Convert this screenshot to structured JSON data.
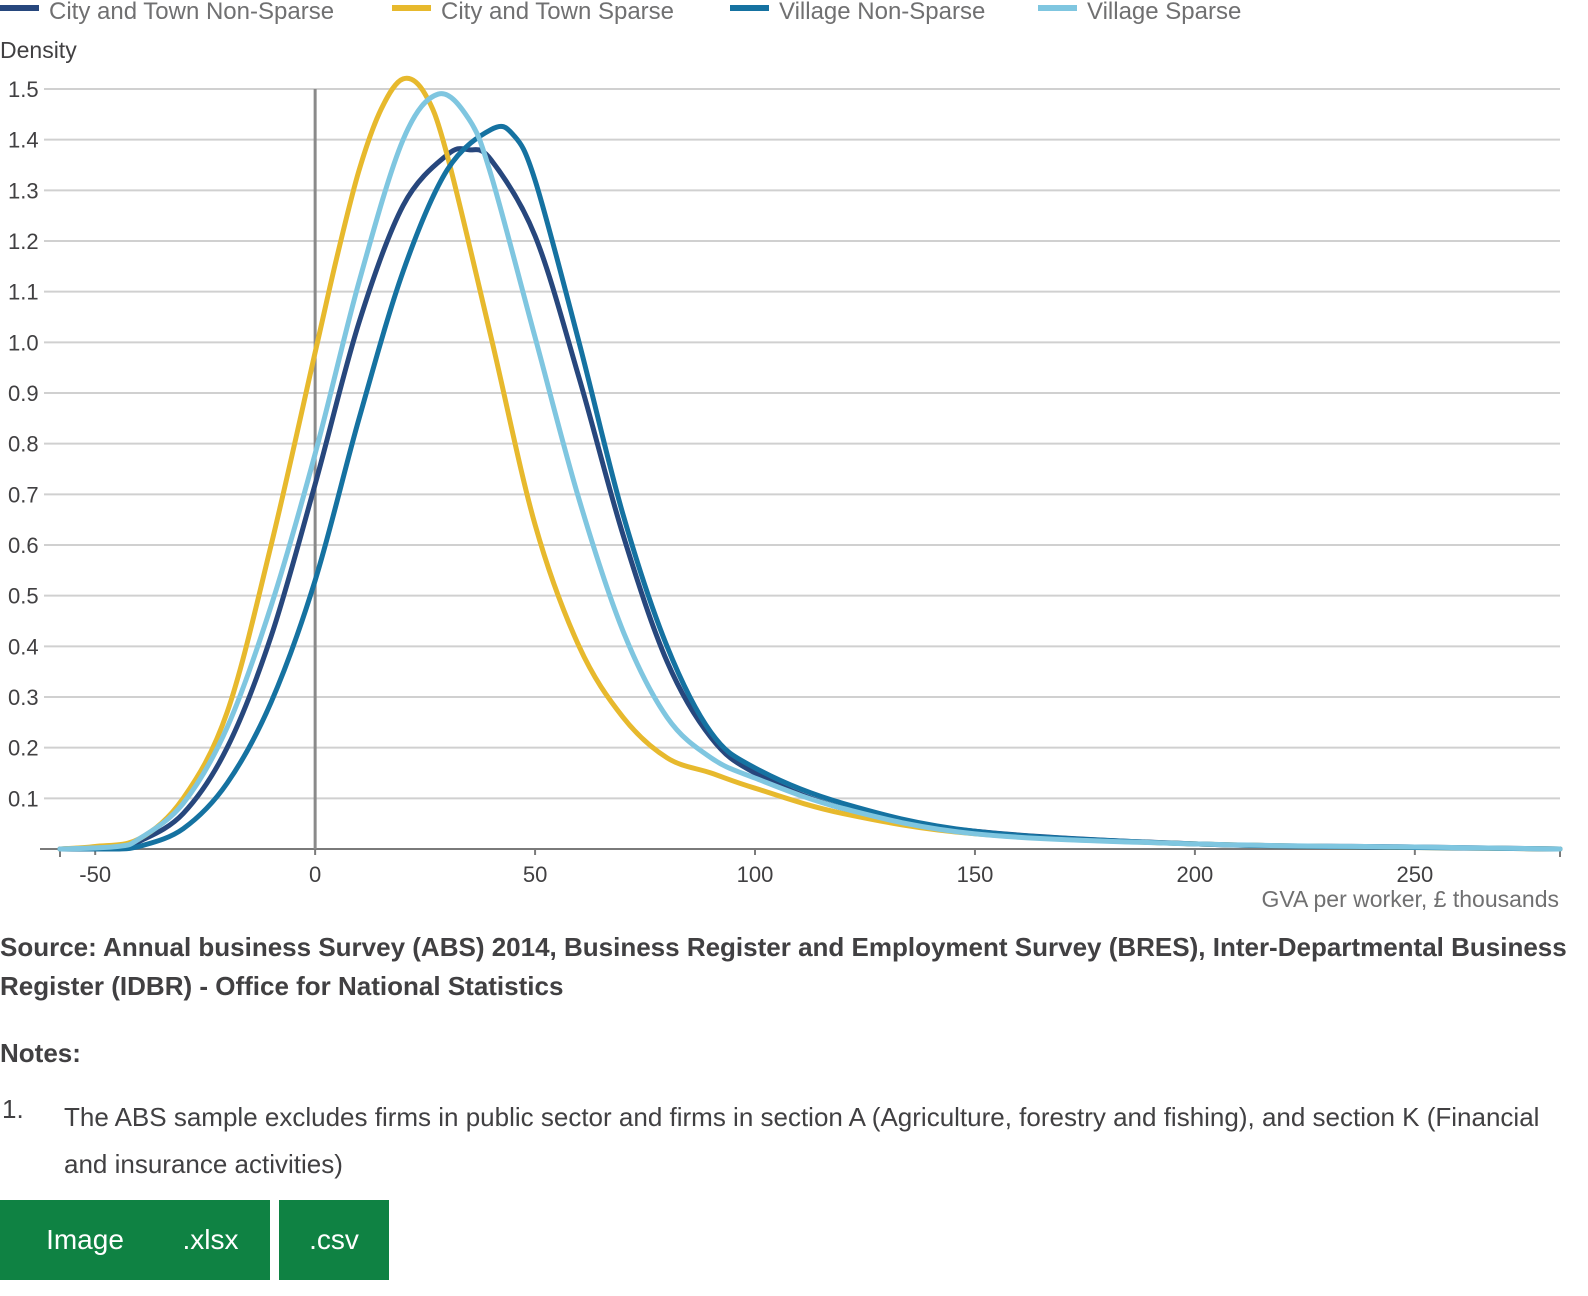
{
  "chart_data": {
    "type": "line",
    "ylabel": "Density",
    "xlabel": "GVA per worker, £ thousands",
    "xlim": [
      -58,
      283
    ],
    "ylim": [
      0,
      1.5
    ],
    "x_ticks": [
      -50,
      0,
      50,
      100,
      150,
      200,
      250
    ],
    "x_tick_labels": [
      "-50",
      "0",
      "50",
      "100",
      "150",
      "200",
      "250"
    ],
    "y_ticks": [
      0.1,
      0.2,
      0.3,
      0.4,
      0.5,
      0.6,
      0.7,
      0.8,
      0.9,
      1.0,
      1.1,
      1.2,
      1.3,
      1.4,
      1.5
    ],
    "y_tick_labels": [
      "0.1",
      "0.2",
      "0.3",
      "0.4",
      "0.5",
      "0.6",
      "0.7",
      "0.8",
      "0.9",
      "1.0",
      "1.1",
      "1.2",
      "1.3",
      "1.4",
      "1.5"
    ],
    "grid": true,
    "legend_position": "top",
    "reference_line_x": 0,
    "series": [
      {
        "name": "City and Town Non-Sparse",
        "color": "#27477d",
        "x": [
          -58,
          -45,
          -40,
          -30,
          -20,
          -10,
          0,
          10,
          20,
          30,
          35,
          40,
          50,
          60,
          70,
          80,
          90,
          100,
          120,
          150,
          200,
          250,
          283
        ],
        "y": [
          0,
          0.005,
          0.015,
          0.07,
          0.2,
          0.42,
          0.72,
          1.04,
          1.27,
          1.37,
          1.38,
          1.36,
          1.21,
          0.93,
          0.62,
          0.37,
          0.22,
          0.15,
          0.08,
          0.035,
          0.01,
          0.004,
          0
        ]
      },
      {
        "name": "City and Town Sparse",
        "color": "#e7b92d",
        "x": [
          -58,
          -50,
          -40,
          -30,
          -20,
          -10,
          0,
          5,
          10,
          15,
          20,
          25,
          30,
          40,
          50,
          60,
          70,
          80,
          90,
          100,
          120,
          150,
          200,
          250,
          283
        ],
        "y": [
          0,
          0.005,
          0.02,
          0.1,
          0.27,
          0.6,
          0.98,
          1.17,
          1.34,
          1.46,
          1.52,
          1.49,
          1.37,
          1.01,
          0.64,
          0.4,
          0.26,
          0.18,
          0.15,
          0.12,
          0.07,
          0.03,
          0.01,
          0.003,
          0
        ]
      },
      {
        "name": "Village Non-Sparse",
        "color": "#1572a1",
        "x": [
          -58,
          -45,
          -40,
          -30,
          -20,
          -10,
          0,
          10,
          20,
          30,
          40,
          45,
          50,
          60,
          70,
          80,
          90,
          100,
          120,
          150,
          200,
          250,
          283
        ],
        "y": [
          0,
          0,
          0.005,
          0.04,
          0.13,
          0.29,
          0.53,
          0.85,
          1.14,
          1.34,
          1.42,
          1.41,
          1.32,
          1.0,
          0.66,
          0.4,
          0.23,
          0.16,
          0.09,
          0.035,
          0.01,
          0.003,
          0
        ]
      },
      {
        "name": "Village Sparse",
        "color": "#7fc6e0",
        "x": [
          -58,
          -45,
          -40,
          -30,
          -20,
          -10,
          0,
          10,
          20,
          28,
          35,
          40,
          50,
          60,
          70,
          80,
          90,
          100,
          120,
          150,
          200,
          250,
          283
        ],
        "y": [
          0,
          0.005,
          0.02,
          0.09,
          0.24,
          0.48,
          0.78,
          1.12,
          1.4,
          1.49,
          1.44,
          1.33,
          1.01,
          0.69,
          0.43,
          0.26,
          0.18,
          0.14,
          0.08,
          0.03,
          0.01,
          0.004,
          0
        ]
      }
    ]
  },
  "source": "Source: Annual business Survey (ABS) 2014, Business Register and Employment Survey (BRES), Inter-Departmental Business Register (IDBR) - Office for National Statistics",
  "notes": {
    "title": "Notes:",
    "items": [
      {
        "number": "1.",
        "text": "The ABS sample excludes firms in public sector and firms in section A (Agriculture, forestry and fishing), and section K (Financial and insurance activities)"
      }
    ]
  },
  "downloads": {
    "image_label": "Image",
    "xlsx_label": ".xlsx",
    "csv_label": ".csv",
    "color": "#0f8243"
  }
}
